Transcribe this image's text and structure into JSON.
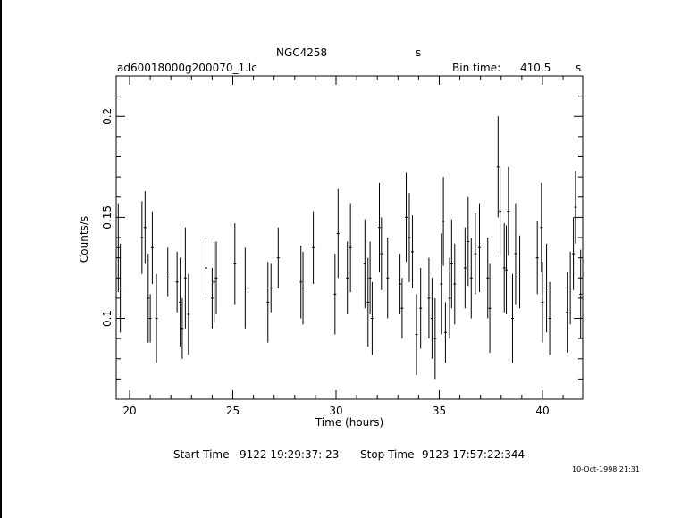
{
  "header": {
    "object": "NGC4258",
    "object_unit": "s",
    "filename": "ad60018000g200070_1.lc",
    "bin_time_label": "Bin time:",
    "bin_time_value": "410.5",
    "bin_time_unit": "s"
  },
  "footer": {
    "start_label": "Start Time",
    "start_value": "9122 19:29:37: 23",
    "stop_label": "Stop Time",
    "stop_value": "9123 17:57:22:344",
    "date_stamp": "10-Oct-1998 21:31"
  },
  "chart_data": {
    "type": "scatter",
    "xlabel": "Time (hours)",
    "ylabel": "Counts/s",
    "xlim": [
      19.35,
      41.95
    ],
    "ylim": [
      0.06,
      0.22
    ],
    "x_ticks": [
      20,
      25,
      30,
      35,
      40
    ],
    "x_tick_labels": [
      "20",
      "25",
      "30",
      "35",
      "40"
    ],
    "y_ticks": [
      0.1,
      0.15,
      0.2
    ],
    "y_tick_labels": [
      "0.1",
      "0.15",
      "0.2"
    ],
    "series": [
      {
        "x": [
          19.45,
          19.55,
          20.6,
          20.75,
          20.9,
          21.0,
          21.1,
          21.3,
          21.85,
          22.3,
          22.45,
          22.55,
          22.7,
          22.85,
          23.7,
          24.0,
          24.1,
          24.2,
          25.1,
          25.6,
          26.7,
          26.85,
          27.2,
          28.3,
          28.4,
          28.9,
          29.95,
          30.1,
          30.55,
          30.7,
          31.4,
          31.55,
          31.65,
          31.75,
          32.1,
          32.2,
          32.5,
          33.1,
          33.2,
          33.4,
          33.55,
          33.7,
          33.9,
          34.1,
          34.5,
          34.65,
          34.8,
          35.1,
          35.2,
          35.3,
          35.5,
          35.6,
          35.75,
          36.25,
          36.4,
          36.55,
          36.75,
          36.95,
          37.35,
          37.45,
          37.85,
          37.95,
          38.15,
          38.25,
          38.35,
          38.55,
          38.7,
          38.9,
          39.75,
          39.95,
          40.0,
          40.2,
          40.35,
          41.2,
          41.35,
          41.5,
          41.6,
          41.85
        ],
        "y": [
          0.135,
          0.115,
          0.14,
          0.145,
          0.11,
          0.1,
          0.135,
          0.1,
          0.123,
          0.118,
          0.108,
          0.095,
          0.12,
          0.102,
          0.125,
          0.11,
          0.118,
          0.12,
          0.127,
          0.115,
          0.108,
          0.115,
          0.13,
          0.118,
          0.115,
          0.135,
          0.112,
          0.142,
          0.12,
          0.135,
          0.127,
          0.108,
          0.12,
          0.1,
          0.145,
          0.132,
          0.12,
          0.117,
          0.105,
          0.15,
          0.14,
          0.133,
          0.092,
          0.105,
          0.11,
          0.1,
          0.09,
          0.117,
          0.148,
          0.093,
          0.11,
          0.127,
          0.117,
          0.125,
          0.138,
          0.12,
          0.132,
          0.135,
          0.12,
          0.105,
          0.175,
          0.153,
          0.125,
          0.124,
          0.153,
          0.1,
          0.132,
          0.123,
          0.13,
          0.145,
          0.108,
          0.115,
          0.1,
          0.103,
          0.115,
          0.132,
          0.155,
          0.112
        ],
        "err": [
          0.022,
          0.022,
          0.018,
          0.018,
          0.022,
          0.012,
          0.018,
          0.022,
          0.012,
          0.015,
          0.022,
          0.015,
          0.025,
          0.02,
          0.015,
          0.015,
          0.02,
          0.018,
          0.02,
          0.02,
          0.02,
          0.012,
          0.015,
          0.018,
          0.018,
          0.018,
          0.02,
          0.022,
          0.018,
          0.022,
          0.022,
          0.022,
          0.018,
          0.018,
          0.022,
          0.018,
          0.02,
          0.015,
          0.015,
          0.022,
          0.022,
          0.018,
          0.02,
          0.02,
          0.02,
          0.02,
          0.02,
          0.025,
          0.022,
          0.015,
          0.02,
          0.022,
          0.02,
          0.02,
          0.022,
          0.02,
          0.02,
          0.022,
          0.02,
          0.022,
          0.025,
          0.022,
          0.022,
          0.022,
          0.022,
          0.022,
          0.025,
          0.018,
          0.018,
          0.022,
          0.02,
          0.022,
          0.018,
          0.02,
          0.018,
          0.018,
          0.018,
          0.022
        ]
      }
    ]
  }
}
